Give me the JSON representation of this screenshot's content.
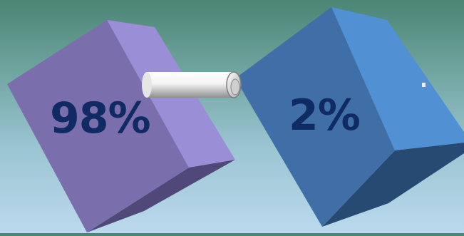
{
  "blocks": [
    {
      "label": "98%",
      "value_percent": 98,
      "colors": {
        "face": "#7a6fac",
        "side": "#9a8fd6",
        "bottom": "#4f4878"
      }
    },
    {
      "label": "2%",
      "value_percent": 2,
      "colors": {
        "face": "#3f6fa6",
        "side": "#5290d4",
        "bottom": "#274a72"
      }
    }
  ],
  "connector": {
    "icon": "pipe-connector",
    "color": "#d9d9d9"
  },
  "colors": {
    "label_text": "#102a64",
    "background_top": "#4b8574",
    "background_bottom": "#bcd9ee"
  }
}
